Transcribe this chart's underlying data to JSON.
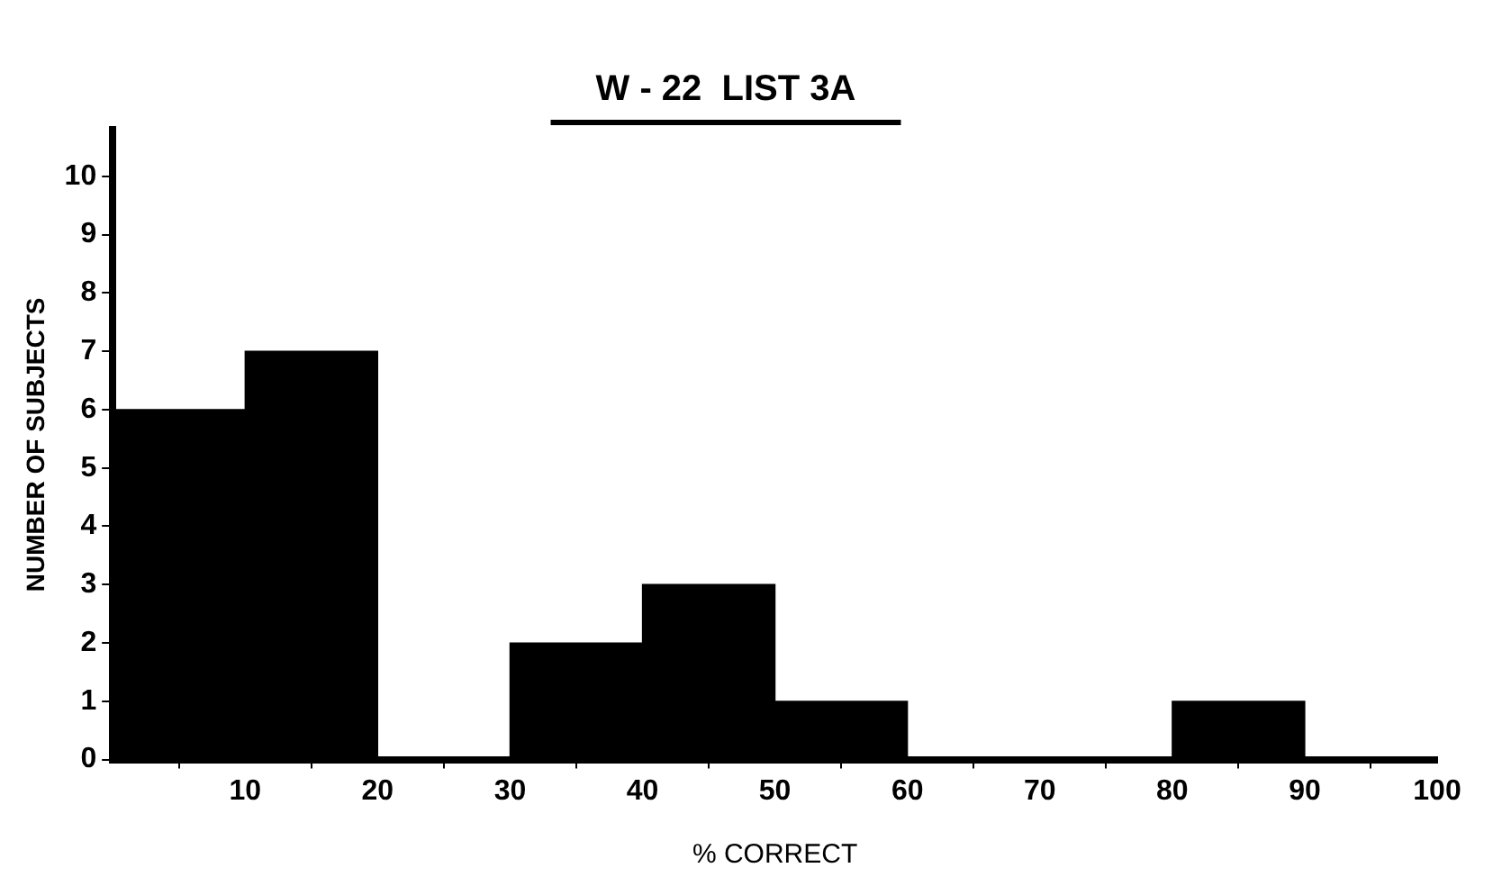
{
  "chart_data": {
    "type": "histogram",
    "title": "W - 22  LIST 3A",
    "xlabel": "% CORRECT",
    "ylabel": "NUMBER OF SUBJECTS",
    "bins": [
      0,
      10,
      20,
      30,
      40,
      50,
      60,
      70,
      80,
      90,
      100
    ],
    "values": [
      6,
      7,
      0,
      2,
      3,
      1,
      0,
      0,
      1,
      0
    ],
    "color": "#000000",
    "xlim": [
      0,
      100
    ],
    "xticks": [
      10,
      20,
      30,
      40,
      50,
      60,
      70,
      80,
      90,
      100
    ],
    "ylim": [
      0,
      10.8
    ],
    "yticks": [
      0,
      1,
      2,
      3,
      4,
      5,
      6,
      7,
      8,
      9,
      10
    ],
    "grid": false,
    "legend": false
  }
}
